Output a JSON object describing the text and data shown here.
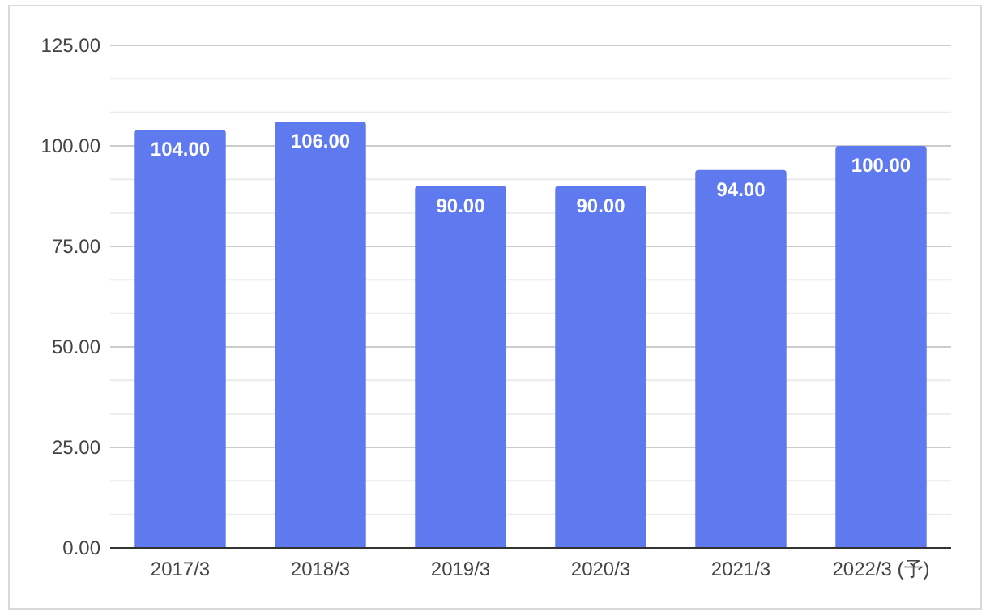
{
  "chart_data": {
    "type": "bar",
    "categories": [
      "2017/3",
      "2018/3",
      "2019/3",
      "2020/3",
      "2021/3",
      "2022/3 (予)"
    ],
    "values": [
      104,
      106,
      90,
      90,
      94,
      100
    ],
    "color": "#5f79ef",
    "ylim": [
      0,
      125
    ],
    "yticks": [
      {
        "value": 0,
        "label": "0.00"
      },
      {
        "value": 25,
        "label": "25.00"
      },
      {
        "value": 50,
        "label": "50.00"
      },
      {
        "value": 75,
        "label": "75.00"
      },
      {
        "value": 100,
        "label": "100.00"
      },
      {
        "value": 125,
        "label": "125.00"
      }
    ],
    "grid": "y",
    "value_labels": [
      "104.00",
      "106.00",
      "90.00",
      "90.00",
      "94.00",
      "100.00"
    ]
  }
}
